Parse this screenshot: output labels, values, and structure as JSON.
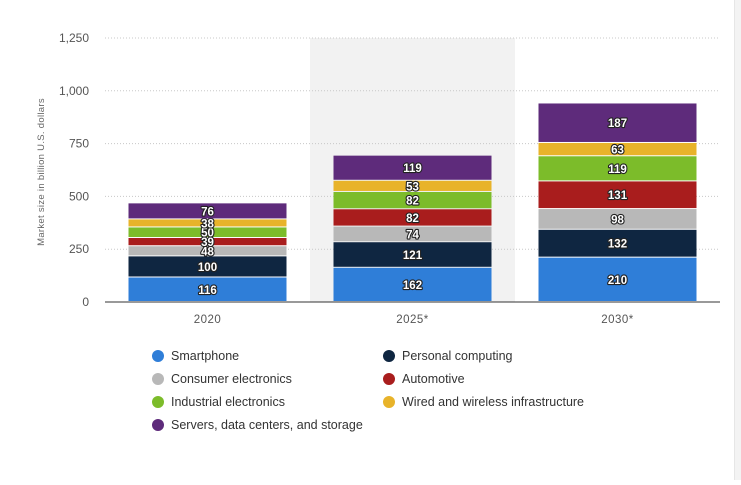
{
  "chart_data": {
    "type": "bar",
    "stacked": true,
    "categories": [
      "2020",
      "2025*",
      "2030*"
    ],
    "ylabel": "Market size in billion U.S. dollars",
    "xlabel": "",
    "ylim": [
      0,
      1250
    ],
    "yticks": [
      "0",
      "250",
      "500",
      "750",
      "1,000",
      "1,250"
    ],
    "ytick_values": [
      0,
      250,
      500,
      750,
      1000,
      1250
    ],
    "grid": true,
    "highlighted_category": "2025*",
    "legend_position": "bottom",
    "series": [
      {
        "name": "Smartphone",
        "color": "#2f7ed8",
        "values": [
          116,
          162,
          210
        ]
      },
      {
        "name": "Personal computing",
        "color": "#0f2641",
        "values": [
          100,
          121,
          132
        ]
      },
      {
        "name": "Consumer electronics",
        "color": "#b8b8b8",
        "values": [
          48,
          74,
          98
        ]
      },
      {
        "name": "Automotive",
        "color": "#a91d1d",
        "values": [
          39,
          82,
          131
        ]
      },
      {
        "name": "Industrial electronics",
        "color": "#7cbc2a",
        "values": [
          50,
          82,
          119
        ]
      },
      {
        "name": "Wired and wireless infrastructure",
        "color": "#e8b32a",
        "values": [
          38,
          53,
          63
        ]
      },
      {
        "name": "Servers, data centers, and storage",
        "color": "#5e2b7b",
        "values": [
          76,
          119,
          187
        ]
      }
    ]
  }
}
